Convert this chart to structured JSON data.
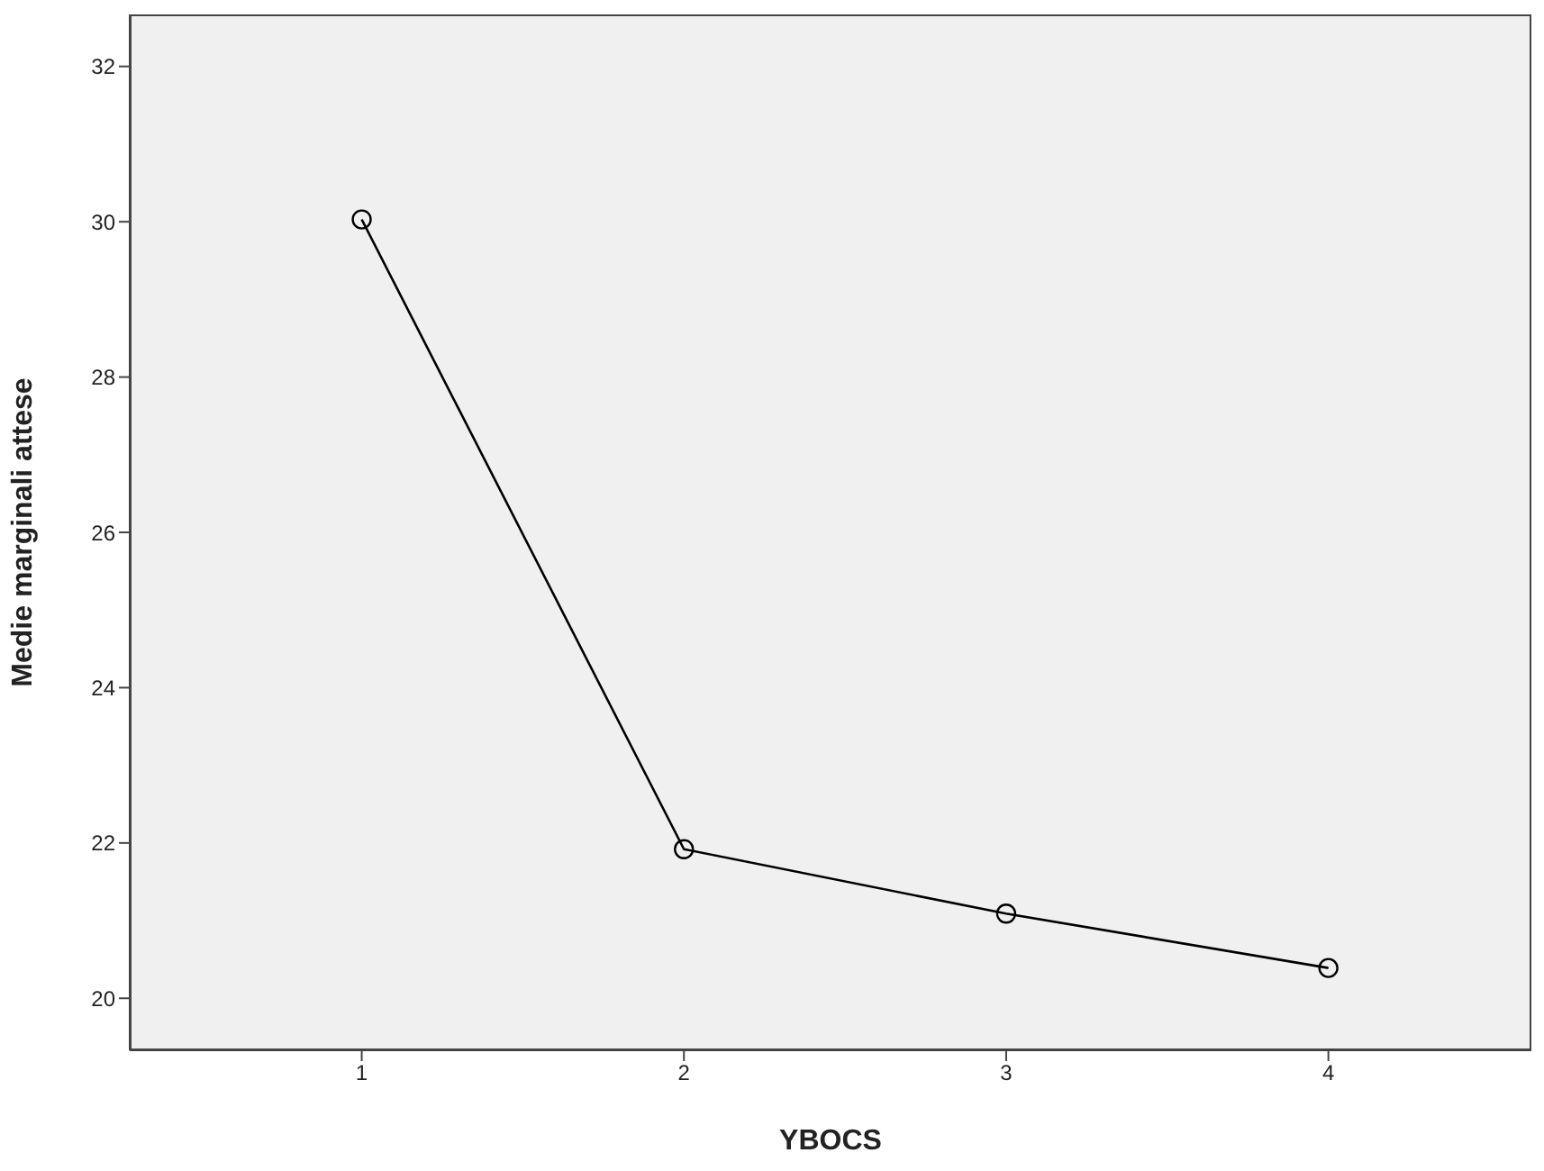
{
  "chart_data": {
    "type": "line",
    "xlabel": "YBOCS",
    "ylabel": "Medie marginali attese",
    "x": [
      1,
      2,
      3,
      4
    ],
    "series": [
      {
        "color": "#000000",
        "values": [
          30.03,
          21.92,
          21.09,
          20.39
        ]
      }
    ],
    "xlim": [
      0.28,
      4.63
    ],
    "xticks": [
      1,
      2,
      3,
      4
    ],
    "ylim": [
      19.33,
      32.67
    ],
    "yticks": [
      20,
      22,
      24,
      26,
      28,
      30,
      32
    ],
    "grid": false,
    "legend": false,
    "marker": "circle",
    "line_style": "solid"
  }
}
